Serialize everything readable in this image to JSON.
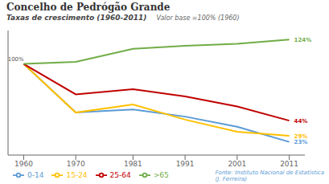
{
  "chart_data": {
    "type": "line",
    "title": "Concelho de Pedrógão Grande",
    "subtitle": "Taxas de crescimento (1960-2011)",
    "x": [
      1960,
      1970,
      1981,
      1991,
      2001,
      2011
    ],
    "series": [
      {
        "name": "0-14",
        "color": "#5b9bd5",
        "values": [
          100,
          52,
          55,
          48,
          38,
          23
        ]
      },
      {
        "name": "15-24",
        "color": "#ffc000",
        "values": [
          100,
          52,
          60,
          45,
          33,
          29
        ]
      },
      {
        "name": "25-64",
        "color": "#c00000",
        "values": [
          100,
          70,
          75,
          68,
          58,
          44
        ]
      },
      {
        "name": ">65",
        "color": "#70ad47",
        "values": [
          100,
          102,
          115,
          118,
          120,
          124
        ]
      }
    ],
    "xlim": [
      1957,
      2014
    ],
    "xticks": [
      1960,
      1970,
      1981,
      1991,
      2001,
      2011
    ],
    "ylim": [
      10,
      133
    ],
    "tick_labels": "x",
    "grid": false,
    "legend": "bottom",
    "annotations": [
      {
        "text": "Valor base =100% (1960)"
      },
      {
        "text": "Fonte: Instituto Nacional de Estatística\n(J. Ferreira)"
      },
      {
        "text": "100%",
        "x": 1958.5,
        "y": 100
      },
      {
        "text": "124%",
        "x": 2011,
        "y": 124,
        "color": "#70ad47"
      },
      {
        "text": "44%",
        "x": 2011,
        "y": 44,
        "color": "#c00000"
      },
      {
        "text": "29%",
        "x": 2011,
        "y": 29,
        "color": "#ffc000"
      },
      {
        "text": "23%",
        "x": 2011,
        "y": 23,
        "color": "#5b9bd5"
      }
    ]
  }
}
